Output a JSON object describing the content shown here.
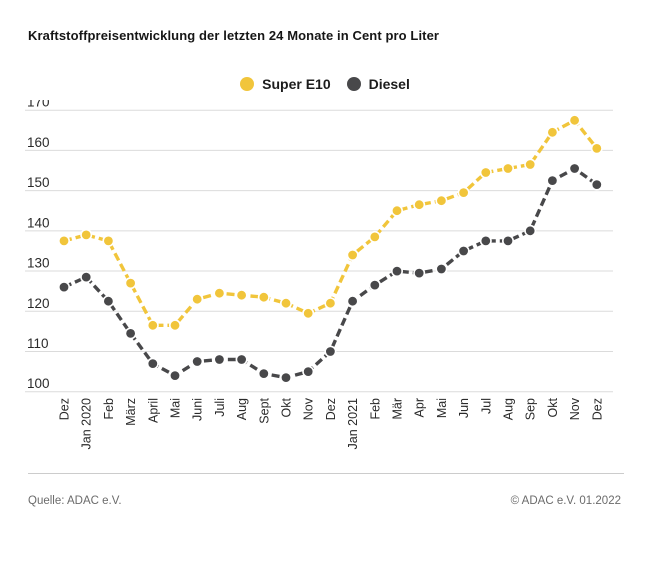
{
  "page": {
    "title": "Kraftstoffpreisentwicklung der letzten 24 Monate in Cent pro Liter",
    "source": "Quelle: ADAC e.V.",
    "copyright": "© ADAC e.V. 01.2022"
  },
  "colors": {
    "super_e10": "#F1C53B",
    "diesel": "#48484A",
    "gridline": "#DBDBDB",
    "background": "#FFFFFF"
  },
  "legend": [
    {
      "label": "Super E10",
      "color": "#F1C53B"
    },
    {
      "label": "Diesel",
      "color": "#48484A"
    }
  ],
  "chart_data": {
    "type": "line",
    "title": "Kraftstoffpreisentwicklung der letzten 24 Monate in Cent pro Liter",
    "xlabel": "",
    "ylabel": "Cent pro Liter",
    "ylim": [
      100,
      170
    ],
    "yticks": [
      100,
      110,
      120,
      130,
      140,
      150,
      160,
      170
    ],
    "grid": true,
    "legend_position": "top-center",
    "categories": [
      "Dez",
      "Jan 2020",
      "Feb",
      "März",
      "April",
      "Mai",
      "Juni",
      "Juli",
      "Aug",
      "Sept",
      "Okt",
      "Nov",
      "Dez",
      "Jan 2021",
      "Feb",
      "Mär",
      "Apr",
      "Mai",
      "Jun",
      "Jul",
      "Aug",
      "Sep",
      "Okt",
      "Nov",
      "Dez"
    ],
    "series": [
      {
        "name": "Super E10",
        "color": "#F1C53B",
        "values": [
          137.5,
          139,
          137.5,
          127,
          116.5,
          116.5,
          123,
          124.5,
          124,
          123.5,
          122,
          119.5,
          122,
          134,
          138.5,
          145,
          146.5,
          147.5,
          149.5,
          154.5,
          155.5,
          156.5,
          164.5,
          167.5,
          160.5
        ]
      },
      {
        "name": "Diesel",
        "color": "#48484A",
        "values": [
          126,
          128.5,
          122.5,
          114.5,
          107,
          104,
          107.5,
          108,
          108,
          104.5,
          103.5,
          105,
          110,
          122.5,
          126.5,
          130,
          129.5,
          130.5,
          135,
          137.5,
          137.5,
          140,
          152.5,
          155.5,
          151.5
        ]
      }
    ]
  }
}
